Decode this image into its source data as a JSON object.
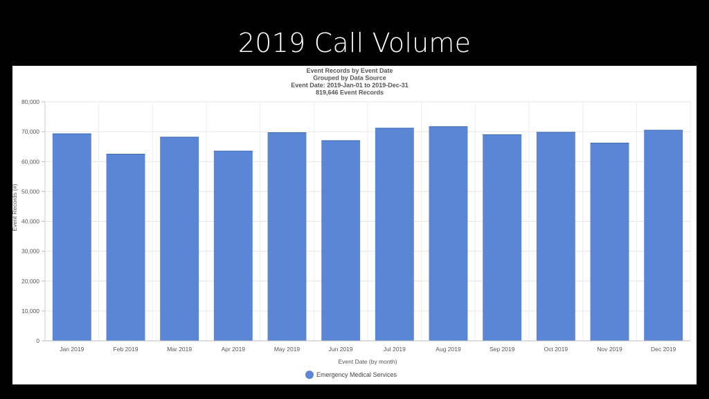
{
  "slide": {
    "title": "2019 Call Volume"
  },
  "chart_data": {
    "type": "bar",
    "title_lines": [
      "Event Records by Event Date",
      "Grouped by Data Source",
      "Event Date: 2019-Jan-01 to 2019-Dec-31",
      "819,646 Event Records"
    ],
    "xlabel": "Event Date (by month)",
    "ylabel": "Event Records (#)",
    "categories": [
      "Jan 2019",
      "Feb 2019",
      "Mar 2019",
      "Apr 2019",
      "May 2019",
      "Jun 2019",
      "Jul 2019",
      "Aug 2019",
      "Sep 2019",
      "Oct 2019",
      "Nov 2019",
      "Dec 2019"
    ],
    "series": [
      {
        "name": "Emergency Medical Services",
        "color": "#5b86d6",
        "values": [
          69400,
          62600,
          68300,
          63600,
          69800,
          67100,
          71300,
          71800,
          69100,
          69900,
          66300,
          70600
        ]
      }
    ],
    "ylim": [
      0,
      80000
    ],
    "yticks": [
      0,
      10000,
      20000,
      30000,
      40000,
      50000,
      60000,
      70000,
      80000
    ],
    "ytick_labels": [
      "0",
      "10,000",
      "20,000",
      "30,000",
      "40,000",
      "50,000",
      "60,000",
      "70,000",
      "80,000"
    ],
    "grid": true,
    "legend": "bottom-center"
  }
}
